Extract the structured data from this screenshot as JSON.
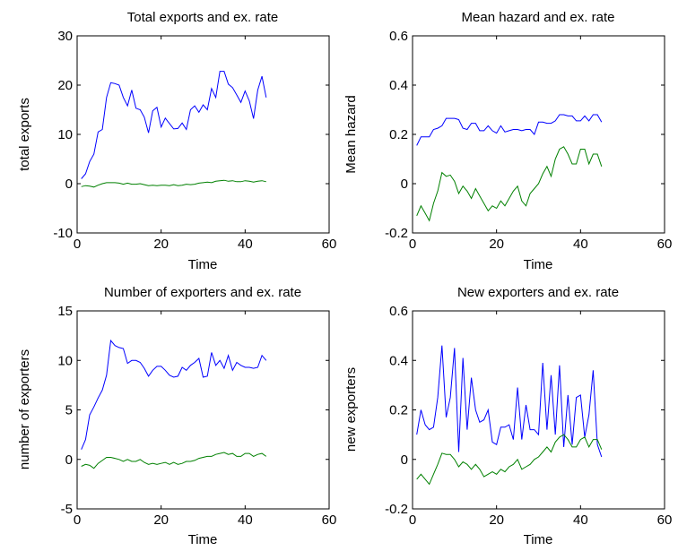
{
  "chart_data": [
    {
      "type": "line",
      "title": "Total exports and ex. rate",
      "xlabel": "Time",
      "ylabel": "total exports",
      "xlim": [
        0,
        60
      ],
      "ylim": [
        -10,
        30
      ],
      "xticks": [
        "0",
        "20",
        "40",
        "60"
      ],
      "yticks": [
        "-10",
        "0",
        "10",
        "20",
        "30"
      ],
      "grid": false,
      "series": [
        {
          "color": "#0000ff",
          "x": [
            1,
            2,
            3,
            4,
            5,
            6,
            7,
            8,
            9,
            10,
            11,
            12,
            13,
            14,
            15,
            16,
            17,
            18,
            19,
            20,
            21,
            22,
            23,
            24,
            25,
            26,
            27,
            28,
            29,
            30,
            31,
            32,
            33,
            34,
            35,
            36,
            37,
            38,
            39,
            40,
            41,
            42,
            43,
            44,
            45
          ],
          "values": [
            1,
            2,
            4.5,
            6,
            10.5,
            11,
            17.5,
            20.5,
            20.3,
            20,
            17.5,
            15.8,
            19,
            15.3,
            15,
            13.5,
            10.3,
            14.8,
            15.5,
            11.5,
            13.3,
            12.2,
            11.1,
            11.2,
            12.3,
            11,
            15,
            15.8,
            14.5,
            16,
            15,
            19.3,
            17.5,
            22.8,
            22.8,
            20.2,
            19.5,
            18,
            16.5,
            18.8,
            16.8,
            13.2,
            19,
            21.8,
            17.5
          ]
        },
        {
          "color": "#008000",
          "x": [
            1,
            2,
            3,
            4,
            5,
            6,
            7,
            8,
            9,
            10,
            11,
            12,
            13,
            14,
            15,
            16,
            17,
            18,
            19,
            20,
            21,
            22,
            23,
            24,
            25,
            26,
            27,
            28,
            29,
            30,
            31,
            32,
            33,
            34,
            35,
            36,
            37,
            38,
            39,
            40,
            41,
            42,
            43,
            44,
            45
          ],
          "values": [
            -0.6,
            -0.4,
            -0.5,
            -0.7,
            -0.3,
            0,
            0.2,
            0.2,
            0.2,
            0.1,
            -0.1,
            0.1,
            -0.1,
            -0.1,
            0,
            -0.2,
            -0.4,
            -0.3,
            -0.4,
            -0.3,
            -0.3,
            -0.4,
            -0.2,
            -0.4,
            -0.3,
            -0.1,
            -0.2,
            -0.1,
            0.1,
            0.2,
            0.3,
            0.2,
            0.5,
            0.6,
            0.7,
            0.5,
            0.6,
            0.4,
            0.4,
            0.6,
            0.5,
            0.3,
            0.5,
            0.6,
            0.4
          ]
        }
      ]
    },
    {
      "type": "line",
      "title": "Mean hazard and ex. rate",
      "xlabel": "Time",
      "ylabel": "Mean hazard",
      "xlim": [
        0,
        60
      ],
      "ylim": [
        -0.2,
        0.6
      ],
      "xticks": [
        "0",
        "20",
        "40",
        "60"
      ],
      "yticks": [
        "-0.2",
        "0",
        "0.2",
        "0.4",
        "0.6"
      ],
      "grid": false,
      "series": [
        {
          "color": "#0000ff",
          "x": [
            1,
            2,
            3,
            4,
            5,
            6,
            7,
            8,
            9,
            10,
            11,
            12,
            13,
            14,
            15,
            16,
            17,
            18,
            19,
            20,
            21,
            22,
            23,
            24,
            25,
            26,
            27,
            28,
            29,
            30,
            31,
            32,
            33,
            34,
            35,
            36,
            37,
            38,
            39,
            40,
            41,
            42,
            43,
            44,
            45
          ],
          "values": [
            0.155,
            0.19,
            0.19,
            0.19,
            0.22,
            0.225,
            0.235,
            0.265,
            0.265,
            0.265,
            0.26,
            0.225,
            0.22,
            0.245,
            0.245,
            0.215,
            0.215,
            0.235,
            0.215,
            0.205,
            0.235,
            0.21,
            0.215,
            0.22,
            0.22,
            0.215,
            0.22,
            0.22,
            0.2,
            0.25,
            0.25,
            0.245,
            0.245,
            0.255,
            0.28,
            0.28,
            0.275,
            0.275,
            0.255,
            0.255,
            0.275,
            0.255,
            0.28,
            0.28,
            0.25
          ]
        },
        {
          "color": "#008000",
          "x": [
            1,
            2,
            3,
            4,
            5,
            6,
            7,
            8,
            9,
            10,
            11,
            12,
            13,
            14,
            15,
            16,
            17,
            18,
            19,
            20,
            21,
            22,
            23,
            24,
            25,
            26,
            27,
            28,
            29,
            30,
            31,
            32,
            33,
            34,
            35,
            36,
            37,
            38,
            39,
            40,
            41,
            42,
            43,
            44,
            45
          ],
          "values": [
            -0.13,
            -0.09,
            -0.12,
            -0.15,
            -0.08,
            -0.03,
            0.045,
            0.03,
            0.035,
            0.01,
            -0.04,
            -0.01,
            -0.03,
            -0.06,
            -0.02,
            -0.05,
            -0.08,
            -0.11,
            -0.09,
            -0.1,
            -0.07,
            -0.09,
            -0.06,
            -0.03,
            -0.01,
            -0.07,
            -0.09,
            -0.04,
            -0.02,
            0,
            0.04,
            0.07,
            0.03,
            0.1,
            0.14,
            0.15,
            0.12,
            0.08,
            0.08,
            0.14,
            0.14,
            0.08,
            0.12,
            0.12,
            0.07
          ]
        }
      ]
    },
    {
      "type": "line",
      "title": "Number of exporters and ex. rate",
      "xlabel": "Time",
      "ylabel": "number of exporters",
      "xlim": [
        0,
        60
      ],
      "ylim": [
        -5,
        15
      ],
      "xticks": [
        "0",
        "20",
        "40",
        "60"
      ],
      "yticks": [
        "-5",
        "0",
        "5",
        "10",
        "15"
      ],
      "grid": false,
      "series": [
        {
          "color": "#0000ff",
          "x": [
            1,
            2,
            3,
            4,
            5,
            6,
            7,
            8,
            9,
            10,
            11,
            12,
            13,
            14,
            15,
            16,
            17,
            18,
            19,
            20,
            21,
            22,
            23,
            24,
            25,
            26,
            27,
            28,
            29,
            30,
            31,
            32,
            33,
            34,
            35,
            36,
            37,
            38,
            39,
            40,
            41,
            42,
            43,
            44,
            45
          ],
          "values": [
            1,
            2,
            4.5,
            5.3,
            6.2,
            7,
            8.5,
            12,
            11.5,
            11.3,
            11.2,
            9.7,
            10,
            10,
            9.8,
            9.2,
            8.4,
            9,
            9.4,
            9.4,
            9,
            8.5,
            8.3,
            8.4,
            9.3,
            9,
            9.5,
            9.8,
            10.2,
            8.3,
            8.4,
            10.8,
            9.5,
            10,
            9.2,
            10.5,
            9,
            9.8,
            9.5,
            9.3,
            9.3,
            9.2,
            9.3,
            10.5,
            10
          ]
        },
        {
          "color": "#008000",
          "x": [
            1,
            2,
            3,
            4,
            5,
            6,
            7,
            8,
            9,
            10,
            11,
            12,
            13,
            14,
            15,
            16,
            17,
            18,
            19,
            20,
            21,
            22,
            23,
            24,
            25,
            26,
            27,
            28,
            29,
            30,
            31,
            32,
            33,
            34,
            35,
            36,
            37,
            38,
            39,
            40,
            41,
            42,
            43,
            44,
            45
          ],
          "values": [
            -0.7,
            -0.5,
            -0.6,
            -0.9,
            -0.4,
            -0.1,
            0.2,
            0.2,
            0.1,
            0,
            -0.2,
            0,
            -0.2,
            -0.2,
            0,
            -0.3,
            -0.5,
            -0.4,
            -0.5,
            -0.4,
            -0.3,
            -0.5,
            -0.3,
            -0.5,
            -0.4,
            -0.2,
            -0.2,
            -0.1,
            0.1,
            0.2,
            0.3,
            0.3,
            0.5,
            0.6,
            0.7,
            0.5,
            0.6,
            0.3,
            0.3,
            0.6,
            0.6,
            0.3,
            0.5,
            0.6,
            0.3
          ]
        }
      ]
    },
    {
      "type": "line",
      "title": "New exporters and ex. rate",
      "xlabel": "Time",
      "ylabel": "new exporters",
      "xlim": [
        0,
        60
      ],
      "ylim": [
        -0.2,
        0.6
      ],
      "xticks": [
        "0",
        "20",
        "40",
        "60"
      ],
      "yticks": [
        "-0.2",
        "0",
        "0.2",
        "0.4",
        "0.6"
      ],
      "grid": false,
      "series": [
        {
          "color": "#0000ff",
          "x": [
            1,
            2,
            3,
            4,
            5,
            6,
            7,
            8,
            9,
            10,
            11,
            12,
            13,
            14,
            15,
            16,
            17,
            18,
            19,
            20,
            21,
            22,
            23,
            24,
            25,
            26,
            27,
            28,
            29,
            30,
            31,
            32,
            33,
            34,
            35,
            36,
            37,
            38,
            39,
            40,
            41,
            42,
            43,
            44,
            45
          ],
          "values": [
            0.1,
            0.2,
            0.14,
            0.12,
            0.13,
            0.25,
            0.46,
            0.17,
            0.25,
            0.45,
            0.03,
            0.41,
            0.12,
            0.33,
            0.2,
            0.15,
            0.16,
            0.2,
            0.07,
            0.06,
            0.13,
            0.13,
            0.14,
            0.08,
            0.29,
            0.08,
            0.22,
            0.12,
            0.12,
            0.1,
            0.39,
            0.12,
            0.34,
            0.1,
            0.38,
            0.05,
            0.26,
            0.06,
            0.25,
            0.26,
            0.09,
            0.18,
            0.36,
            0.06,
            0.01
          ]
        },
        {
          "color": "#008000",
          "x": [
            1,
            2,
            3,
            4,
            5,
            6,
            7,
            8,
            9,
            10,
            11,
            12,
            13,
            14,
            15,
            16,
            17,
            18,
            19,
            20,
            21,
            22,
            23,
            24,
            25,
            26,
            27,
            28,
            29,
            30,
            31,
            32,
            33,
            34,
            35,
            36,
            37,
            38,
            39,
            40,
            41,
            42,
            43,
            44,
            45
          ],
          "values": [
            -0.08,
            -0.06,
            -0.08,
            -0.1,
            -0.06,
            -0.02,
            0.025,
            0.02,
            0.02,
            0,
            -0.03,
            -0.01,
            -0.02,
            -0.04,
            -0.02,
            -0.04,
            -0.07,
            -0.06,
            -0.05,
            -0.06,
            -0.04,
            -0.05,
            -0.03,
            -0.02,
            0,
            -0.04,
            -0.03,
            -0.02,
            0,
            0.01,
            0.03,
            0.05,
            0.03,
            0.07,
            0.09,
            0.1,
            0.08,
            0.05,
            0.05,
            0.08,
            0.09,
            0.05,
            0.08,
            0.08,
            0.04
          ]
        }
      ]
    }
  ]
}
